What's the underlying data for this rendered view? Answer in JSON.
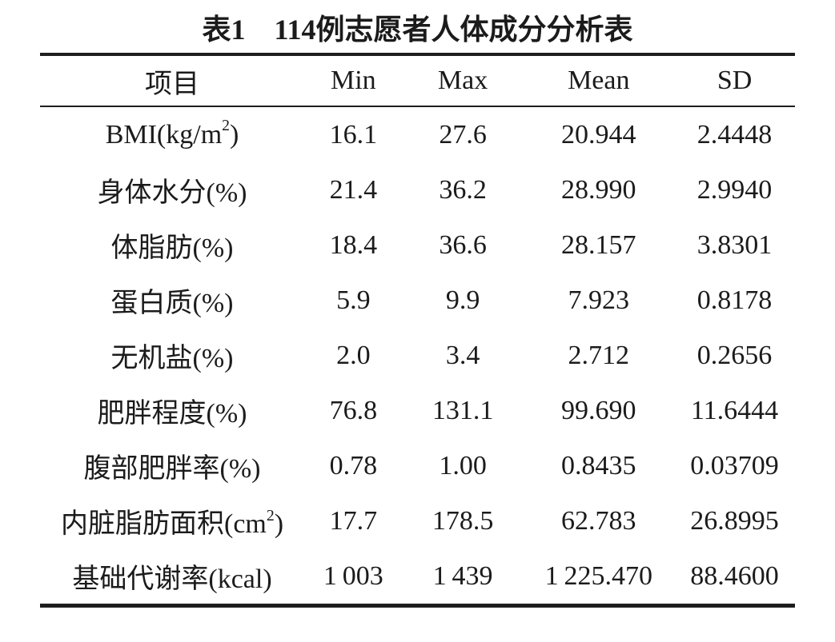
{
  "title": "表1　114例志愿者人体成分分析表",
  "table": {
    "headers": {
      "item": "项目",
      "min": "Min",
      "max": "Max",
      "mean": "Mean",
      "sd": "SD"
    },
    "rows": [
      {
        "item_pre": "BMI(kg/m",
        "item_sup": "2",
        "item_post": ")",
        "min": "16.1",
        "max": "27.6",
        "mean": "20.944",
        "sd": "2.4448"
      },
      {
        "item_pre": "身体水分(%)",
        "item_sup": "",
        "item_post": "",
        "min": "21.4",
        "max": "36.2",
        "mean": "28.990",
        "sd": "2.9940"
      },
      {
        "item_pre": "体脂肪(%)",
        "item_sup": "",
        "item_post": "",
        "min": "18.4",
        "max": "36.6",
        "mean": "28.157",
        "sd": "3.8301"
      },
      {
        "item_pre": "蛋白质(%)",
        "item_sup": "",
        "item_post": "",
        "min": "5.9",
        "max": "9.9",
        "mean": "7.923",
        "sd": "0.8178"
      },
      {
        "item_pre": "无机盐(%)",
        "item_sup": "",
        "item_post": "",
        "min": "2.0",
        "max": "3.4",
        "mean": "2.712",
        "sd": "0.2656"
      },
      {
        "item_pre": "肥胖程度(%)",
        "item_sup": "",
        "item_post": "",
        "min": "76.8",
        "max": "131.1",
        "mean": "99.690",
        "sd": "11.6444"
      },
      {
        "item_pre": "腹部肥胖率(%)",
        "item_sup": "",
        "item_post": "",
        "min": "0.78",
        "max": "1.00",
        "mean": "0.8435",
        "sd": "0.03709"
      },
      {
        "item_pre": "内脏脂肪面积(cm",
        "item_sup": "2",
        "item_post": ")",
        "min": "17.7",
        "max": "178.5",
        "mean": "62.783",
        "sd": "26.8995"
      },
      {
        "item_pre": "基础代谢率(kcal)",
        "item_sup": "",
        "item_post": "",
        "min": "1 003",
        "max": "1 439",
        "mean": "1 225.470",
        "sd": "88.4600"
      }
    ]
  },
  "colors": {
    "text": "#1b1b1b",
    "rule": "#1e1e1e",
    "background": "#ffffff"
  }
}
